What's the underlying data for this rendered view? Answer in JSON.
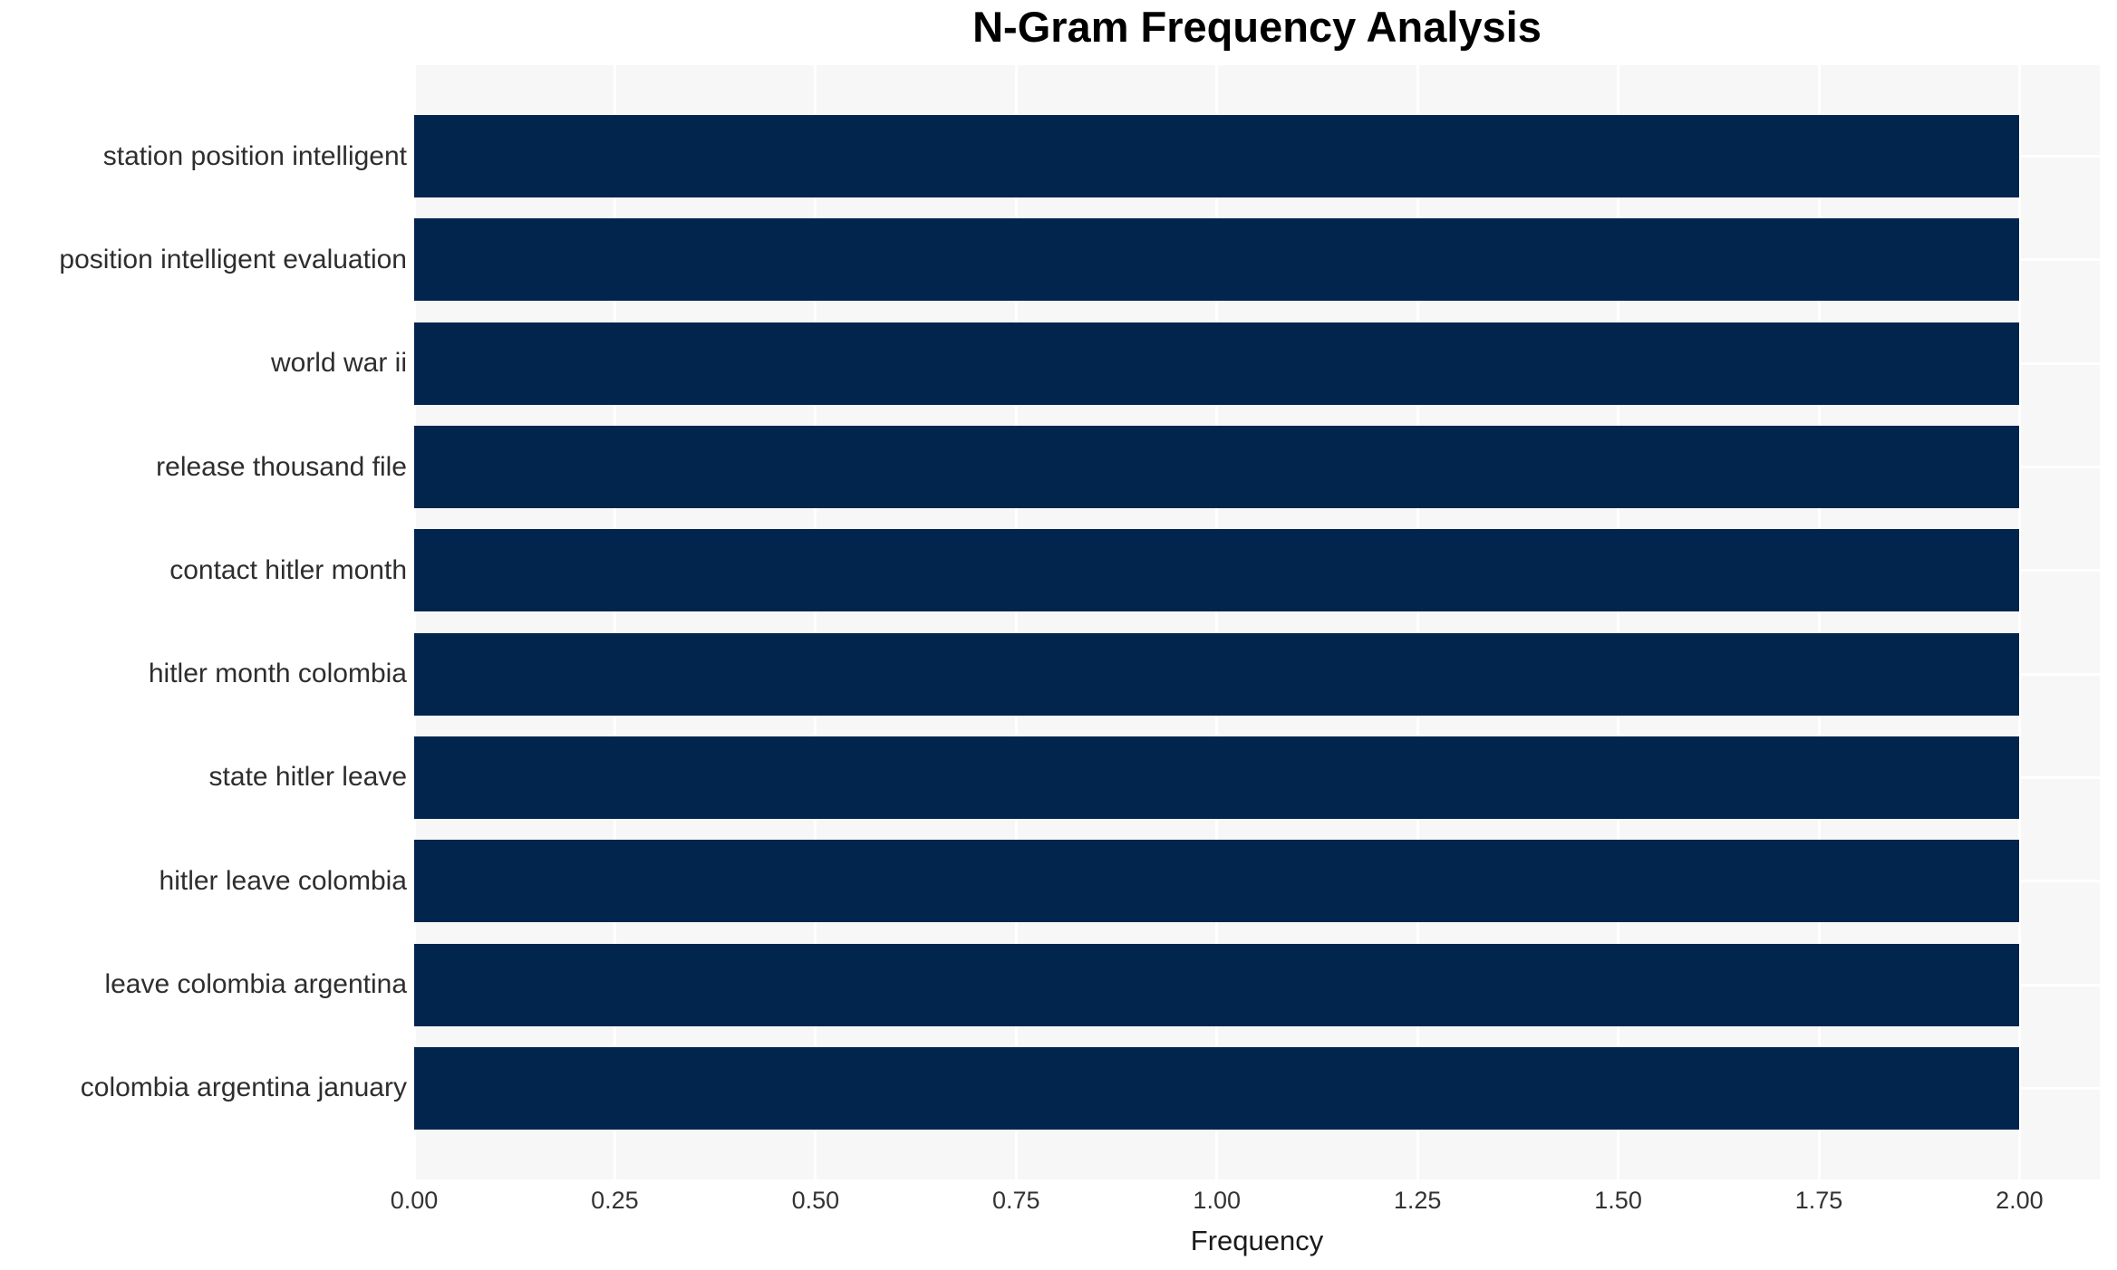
{
  "chart_data": {
    "type": "bar",
    "orientation": "horizontal",
    "title": "N-Gram Frequency Analysis",
    "xlabel": "Frequency",
    "ylabel": "",
    "categories": [
      "station position intelligent",
      "position intelligent evaluation",
      "world war ii",
      "release thousand file",
      "contact hitler month",
      "hitler month colombia",
      "state hitler leave",
      "hitler leave colombia",
      "leave colombia argentina",
      "colombia argentina january"
    ],
    "values": [
      2,
      2,
      2,
      2,
      2,
      2,
      2,
      2,
      2,
      2
    ],
    "xlim": [
      0,
      2.1
    ],
    "xticks": [
      0,
      0.25,
      0.5,
      0.75,
      1,
      1.25,
      1.5,
      1.75,
      2
    ],
    "xtick_labels": [
      "0.00",
      "0.25",
      "0.50",
      "0.75",
      "1.00",
      "1.25",
      "1.50",
      "1.75",
      "2.00"
    ],
    "grid": true,
    "grid_color": "#ffffff",
    "legend": false,
    "colors": {
      "bar": "#02254e",
      "plot_background": "#f7f7f8",
      "figure_background": "#ffffff",
      "title_text": "#000000",
      "tick_text": "#333333",
      "category_text": "#2e2e2e"
    }
  }
}
